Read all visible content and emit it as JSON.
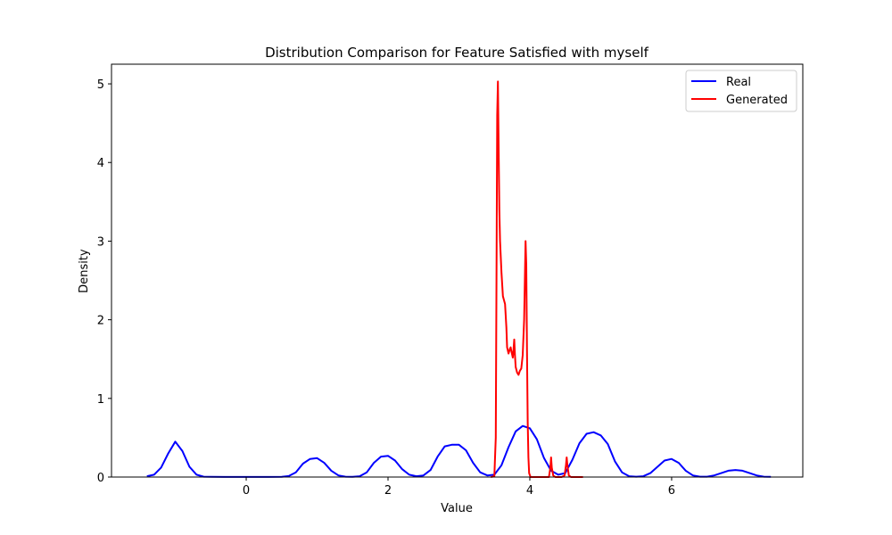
{
  "chart_data": {
    "type": "line",
    "title": "Distribution Comparison for Feature Satisfied with myself",
    "xlabel": "Value",
    "ylabel": "Density",
    "xlim": [
      -1.9,
      7.85
    ],
    "ylim": [
      0,
      5.25
    ],
    "xticks": [
      0,
      2,
      4,
      6
    ],
    "yticks": [
      0,
      1,
      2,
      3,
      4,
      5
    ],
    "grid": false,
    "legend_position": "top-right",
    "series": [
      {
        "name": "Real",
        "color": "#0000ff",
        "x": [
          -1.4,
          -1.3,
          -1.2,
          -1.1,
          -1.0,
          -0.9,
          -0.8,
          -0.7,
          -0.6,
          -0.5,
          -0.3,
          0.0,
          0.3,
          0.5,
          0.6,
          0.7,
          0.8,
          0.9,
          1.0,
          1.1,
          1.2,
          1.3,
          1.4,
          1.5,
          1.6,
          1.7,
          1.8,
          1.9,
          2.0,
          2.1,
          2.2,
          2.3,
          2.4,
          2.5,
          2.6,
          2.7,
          2.8,
          2.9,
          3.0,
          3.1,
          3.2,
          3.3,
          3.4,
          3.5,
          3.6,
          3.7,
          3.8,
          3.9,
          4.0,
          4.1,
          4.2,
          4.3,
          4.4,
          4.5,
          4.6,
          4.7,
          4.8,
          4.9,
          5.0,
          5.1,
          5.2,
          5.3,
          5.4,
          5.5,
          5.6,
          5.7,
          5.8,
          5.9,
          6.0,
          6.1,
          6.2,
          6.3,
          6.4,
          6.5,
          6.6,
          6.7,
          6.8,
          6.9,
          7.0,
          7.1,
          7.2,
          7.3,
          7.4
        ],
        "y": [
          0.01,
          0.03,
          0.12,
          0.3,
          0.45,
          0.33,
          0.13,
          0.03,
          0.005,
          0.002,
          0.001,
          0.001,
          0.001,
          0.002,
          0.012,
          0.06,
          0.17,
          0.23,
          0.24,
          0.18,
          0.08,
          0.02,
          0.005,
          0.003,
          0.01,
          0.06,
          0.18,
          0.26,
          0.27,
          0.21,
          0.1,
          0.03,
          0.01,
          0.02,
          0.09,
          0.26,
          0.39,
          0.41,
          0.41,
          0.34,
          0.18,
          0.06,
          0.02,
          0.03,
          0.15,
          0.38,
          0.58,
          0.65,
          0.62,
          0.48,
          0.24,
          0.08,
          0.03,
          0.05,
          0.22,
          0.43,
          0.55,
          0.57,
          0.53,
          0.42,
          0.2,
          0.06,
          0.01,
          0.005,
          0.01,
          0.05,
          0.13,
          0.21,
          0.23,
          0.18,
          0.08,
          0.02,
          0.005,
          0.005,
          0.02,
          0.05,
          0.08,
          0.09,
          0.08,
          0.05,
          0.02,
          0.005,
          0.002
        ]
      },
      {
        "name": "Generated",
        "color": "#ff0000",
        "x": [
          3.45,
          3.5,
          3.52,
          3.53,
          3.54,
          3.55,
          3.56,
          3.57,
          3.58,
          3.6,
          3.62,
          3.65,
          3.67,
          3.68,
          3.7,
          3.72,
          3.73,
          3.74,
          3.76,
          3.77,
          3.78,
          3.79,
          3.8,
          3.82,
          3.84,
          3.86,
          3.88,
          3.9,
          3.92,
          3.93,
          3.94,
          3.95,
          3.96,
          3.97,
          3.98,
          3.99,
          4.01,
          4.05,
          4.1,
          4.2,
          4.27,
          4.29,
          4.3,
          4.31,
          4.33,
          4.36,
          4.45,
          4.49,
          4.51,
          4.52,
          4.53,
          4.55,
          4.58,
          4.65,
          4.75
        ],
        "y": [
          0.0,
          0.01,
          0.5,
          2.5,
          4.6,
          5.03,
          4.2,
          3.4,
          3.0,
          2.6,
          2.3,
          2.2,
          1.9,
          1.65,
          1.57,
          1.63,
          1.65,
          1.6,
          1.52,
          1.62,
          1.75,
          1.55,
          1.4,
          1.33,
          1.3,
          1.35,
          1.38,
          1.55,
          2.0,
          2.5,
          3.0,
          2.7,
          1.6,
          0.7,
          0.25,
          0.05,
          0.0,
          0.0,
          0.0,
          0.0,
          0.0,
          0.12,
          0.25,
          0.12,
          0.02,
          0.0,
          0.0,
          0.02,
          0.15,
          0.25,
          0.15,
          0.02,
          0.0,
          0.0,
          0.0
        ]
      }
    ]
  }
}
